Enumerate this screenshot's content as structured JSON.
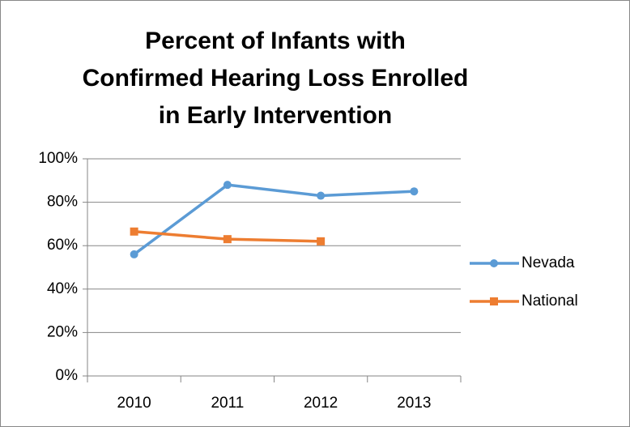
{
  "chart_data": {
    "type": "line",
    "title": "Percent of Infants with Confirmed Hearing Loss Enrolled in Early Intervention",
    "categories": [
      "2010",
      "2011",
      "2012",
      "2013"
    ],
    "series": [
      {
        "name": "Nevada",
        "color": "#5b9bd5",
        "marker": "circle",
        "values": [
          56,
          88,
          83,
          85
        ]
      },
      {
        "name": "National",
        "color": "#ed7d31",
        "marker": "square",
        "values": [
          66.5,
          63,
          62,
          null
        ]
      }
    ],
    "ylim": [
      0,
      100
    ],
    "yticks": [
      {
        "value": 0,
        "label": "0%"
      },
      {
        "value": 20,
        "label": "20%"
      },
      {
        "value": 40,
        "label": "40%"
      },
      {
        "value": 60,
        "label": "60%"
      },
      {
        "value": 80,
        "label": "80%"
      },
      {
        "value": 100,
        "label": "100%"
      }
    ],
    "grid": true,
    "legend": "right"
  }
}
